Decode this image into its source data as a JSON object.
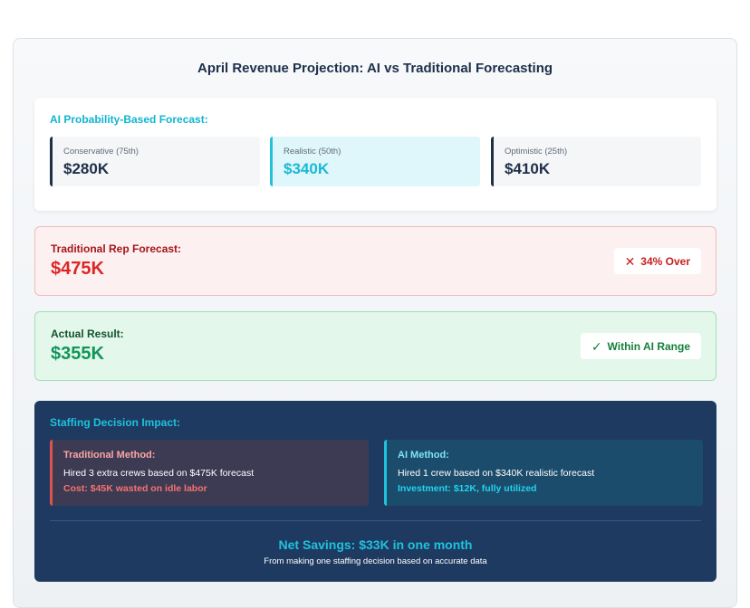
{
  "title": "April Revenue Projection: AI vs Traditional Forecasting",
  "ai_forecast": {
    "heading": "AI Probability-Based Forecast:",
    "scenarios": [
      {
        "label": "Conservative (75th)",
        "value": "$280K"
      },
      {
        "label": "Realistic (50th)",
        "value": "$340K"
      },
      {
        "label": "Optimistic (25th)",
        "value": "$410K"
      }
    ]
  },
  "traditional": {
    "label": "Traditional Rep Forecast:",
    "value": "$475K",
    "badge": "34% Over",
    "badge_icon": "x-icon"
  },
  "actual": {
    "label": "Actual Result:",
    "value": "$355K",
    "badge": "Within AI Range",
    "badge_icon": "check-icon"
  },
  "impact": {
    "heading": "Staffing Decision Impact:",
    "traditional_method": {
      "title": "Traditional Method:",
      "desc": "Hired 3 extra crews based on $475K forecast",
      "note": "Cost: $45K wasted on idle labor"
    },
    "ai_method": {
      "title": "AI Method:",
      "desc": "Hired 1 crew based on $340K realistic forecast",
      "note": "Investment: $12K, fully utilized"
    },
    "savings": "Net Savings: $33K in one month",
    "savings_sub": "From making one staffing decision based on accurate data"
  },
  "colors": {
    "navy": "#1e2f48",
    "cyan": "#1ec2de",
    "red": "#dc2626",
    "green": "#12955a",
    "impact_bg": "#1e3a60"
  }
}
